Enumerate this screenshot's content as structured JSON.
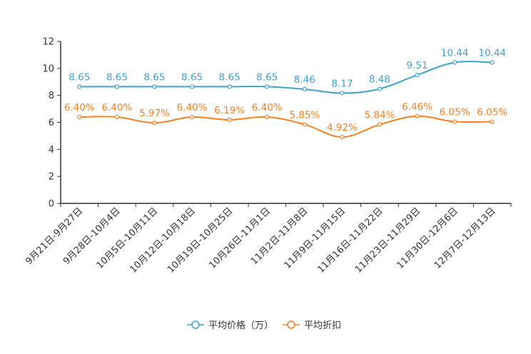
{
  "chart_data": {
    "type": "line",
    "categories": [
      "9月21日-9月27日",
      "9月28日-10月4日",
      "10月5日-10月11日",
      "10月12日-10月18日",
      "10月19日-10月25日",
      "10月26日-11月1日",
      "11月2日-11月8日",
      "11月9日-11月15日",
      "11月16日-11月22日",
      "11月23日-11月29日",
      "11月30日-12月6日",
      "12月7日-12月13日"
    ],
    "ylim": [
      0,
      12
    ],
    "yticks": [
      0,
      2,
      4,
      6,
      8,
      10,
      12
    ],
    "grid": false,
    "legend_position": "bottom-center",
    "series": [
      {
        "name": "平均价格（万）",
        "color": "#3ba1d2",
        "values": [
          8.65,
          8.65,
          8.65,
          8.65,
          8.65,
          8.65,
          8.46,
          8.17,
          8.48,
          9.51,
          10.44,
          10.44
        ],
        "labels": [
          "8.65",
          "8.65",
          "8.65",
          "8.65",
          "8.65",
          "8.65",
          "8.46",
          "8.17",
          "8.48",
          "9.51",
          "10.44",
          "10.44"
        ]
      },
      {
        "name": "平均折扣",
        "color": "#f57e1f",
        "values": [
          6.4,
          6.4,
          5.97,
          6.4,
          6.19,
          6.4,
          5.85,
          4.92,
          5.84,
          6.46,
          6.05,
          6.05
        ],
        "labels": [
          "6.40%",
          "6.40%",
          "5.97%",
          "6.40%",
          "6.19%",
          "6.40%",
          "5.85%",
          "4.92%",
          "5.84%",
          "6.46%",
          "6.05%",
          "6.05%"
        ]
      }
    ]
  }
}
